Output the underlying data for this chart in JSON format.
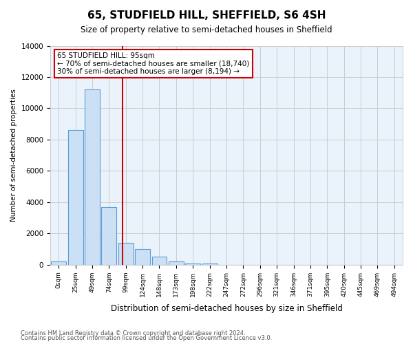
{
  "title": "65, STUDFIELD HILL, SHEFFIELD, S6 4SH",
  "subtitle": "Size of property relative to semi-detached houses in Sheffield",
  "xlabel": "Distribution of semi-detached houses by size in Sheffield",
  "ylabel": "Number of semi-detached properties",
  "footnote1": "Contains HM Land Registry data © Crown copyright and database right 2024.",
  "footnote2": "Contains public sector information licensed under the Open Government Licence v3.0.",
  "bar_labels": [
    "0sqm",
    "25sqm",
    "49sqm",
    "74sqm",
    "99sqm",
    "124sqm",
    "148sqm",
    "173sqm",
    "198sqm",
    "222sqm",
    "247sqm",
    "272sqm",
    "296sqm",
    "321sqm",
    "346sqm",
    "371sqm",
    "395sqm",
    "420sqm",
    "445sqm",
    "469sqm",
    "494sqm"
  ],
  "bar_values": [
    200,
    8600,
    11200,
    3700,
    1400,
    1000,
    500,
    200,
    100,
    100,
    0,
    0,
    0,
    0,
    0,
    0,
    0,
    0,
    0,
    0,
    0
  ],
  "bar_color": "#cce0f5",
  "bar_edge_color": "#5b9bd5",
  "grid_color": "#cccccc",
  "bg_color": "#eaf2fb",
  "property_line_x": 3.8,
  "property_line_color": "#cc0000",
  "annotation_line1": "65 STUDFIELD HILL: 95sqm",
  "annotation_line2": "← 70% of semi-detached houses are smaller (18,740)",
  "annotation_line3": "30% of semi-detached houses are larger (8,194) →",
  "annotation_box_color": "#cc0000",
  "ylim": [
    0,
    14000
  ],
  "yticks": [
    0,
    2000,
    4000,
    6000,
    8000,
    10000,
    12000,
    14000
  ]
}
